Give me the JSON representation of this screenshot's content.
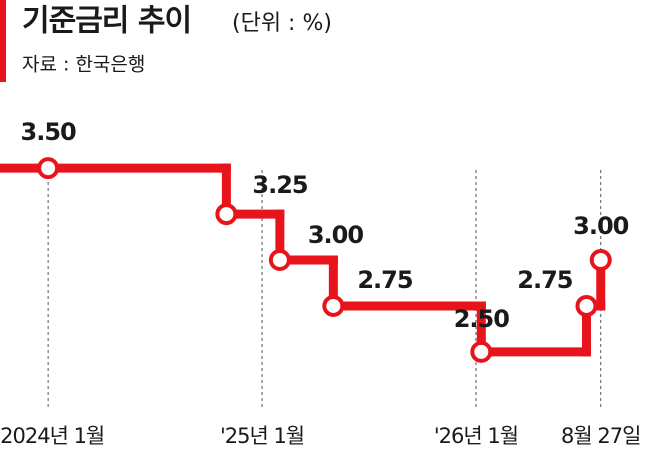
{
  "chart_data": {
    "type": "line",
    "step": true,
    "title": "기준금리 추이",
    "unit": "(단위 : %)",
    "source": "자료 : 한국은행",
    "x": [
      0,
      10,
      13,
      16,
      24.3,
      30.2,
      31
    ],
    "values": [
      3.5,
      3.25,
      3.0,
      2.75,
      2.5,
      2.75,
      3.0
    ],
    "value_labels": [
      "3.50",
      "3.25",
      "3.00",
      "2.75",
      "2.50",
      "2.75",
      "3.00"
    ],
    "color": "#e8141c",
    "xlim": [
      -2.7,
      34.1
    ],
    "ylim": [
      2.2,
      3.8
    ],
    "xticks": [
      {
        "value": 0,
        "label": "2024년 1월"
      },
      {
        "value": 12,
        "label": "'25년 1월"
      },
      {
        "value": 24,
        "label": "'26년 1월"
      },
      {
        "value": 31,
        "label": "8월 27일"
      }
    ]
  }
}
